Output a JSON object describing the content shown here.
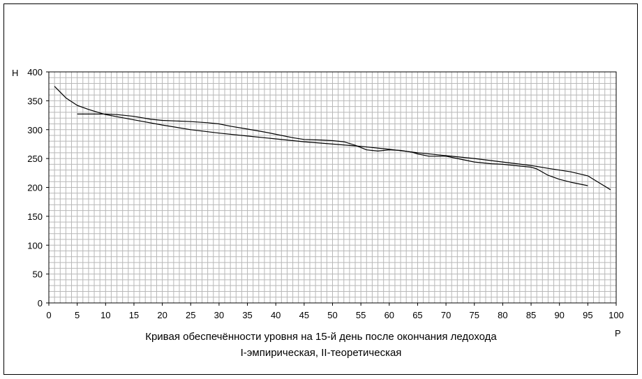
{
  "chart_data": {
    "type": "line",
    "xlabel": "P",
    "ylabel": "H",
    "xlim": [
      0,
      100
    ],
    "ylim": [
      0,
      400
    ],
    "x_ticks": [
      0,
      5,
      10,
      15,
      20,
      25,
      30,
      35,
      40,
      45,
      50,
      55,
      60,
      65,
      70,
      75,
      80,
      85,
      90,
      95,
      100
    ],
    "y_ticks": [
      0,
      50,
      100,
      150,
      200,
      250,
      300,
      350,
      400
    ],
    "grid": true,
    "title_lines": [
      "Кривая обеспечённости уровня на 15-й день после окончания ледохода",
      "I-эмпирическая, II-теоретическая"
    ],
    "series": [
      {
        "x": [
          5,
          8,
          10,
          12,
          15,
          18,
          20,
          25,
          28,
          30,
          32,
          35,
          38,
          40,
          43,
          45,
          48,
          50,
          52,
          54,
          56,
          58,
          60,
          62,
          64,
          65,
          67,
          70,
          72,
          75,
          78,
          80,
          83,
          85,
          86,
          88,
          90,
          92,
          95
        ],
        "y": [
          327,
          327,
          327,
          326,
          323,
          318,
          316,
          314,
          312,
          310,
          306,
          301,
          296,
          292,
          286,
          283,
          282,
          281,
          279,
          273,
          265,
          263,
          265,
          264,
          261,
          258,
          254,
          254,
          250,
          244,
          241,
          240,
          237,
          235,
          232,
          221,
          214,
          209,
          203
        ]
      },
      {
        "x": [
          1,
          3,
          5,
          7,
          10,
          15,
          20,
          25,
          30,
          35,
          40,
          45,
          50,
          55,
          60,
          65,
          70,
          75,
          80,
          85,
          88,
          92,
          95,
          97,
          99
        ],
        "y": [
          375,
          355,
          342,
          335,
          326,
          317,
          308,
          300,
          294,
          289,
          284,
          279,
          275,
          271,
          266,
          260,
          255,
          250,
          244,
          238,
          233,
          227,
          220,
          208,
          196
        ]
      }
    ]
  }
}
